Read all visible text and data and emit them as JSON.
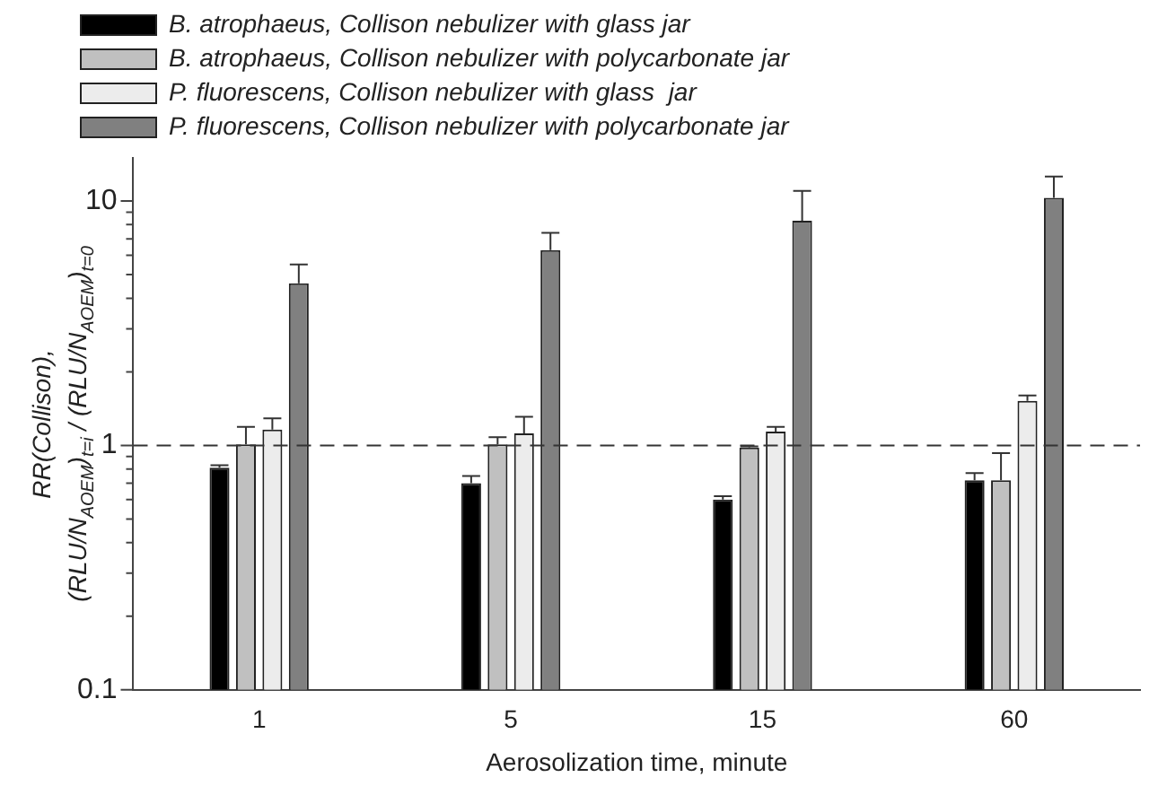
{
  "chart_data": {
    "type": "bar",
    "xlabel": "Aerosolization time, minute",
    "ylabel": "RR(Collison),\n(RLU/N$_{AOEM}$)$_{t=i}$ / (RLU/N$_{AOEM}$)$_{t=0}$",
    "categories": [
      "1",
      "5",
      "15",
      "60"
    ],
    "series": [
      {
        "name": "B. atrophaeus, Collison nebulizer with glass jar",
        "color": "#000000",
        "values": [
          0.81,
          0.7,
          0.6,
          0.72
        ],
        "errors": [
          0.02,
          0.05,
          0.02,
          0.05
        ]
      },
      {
        "name": "B. atrophaeus, Collison nebulizer with polycarbonate jar",
        "color": "#c0c0c0",
        "values": [
          1.01,
          1.01,
          0.98,
          0.72
        ],
        "errors": [
          0.18,
          0.07,
          0.01,
          0.21
        ]
      },
      {
        "name": "P. fluorescens, Collison nebulizer with glass  jar",
        "color": "#ececec",
        "values": [
          1.16,
          1.12,
          1.14,
          1.52
        ],
        "errors": [
          0.13,
          0.19,
          0.05,
          0.08
        ]
      },
      {
        "name": "P. fluorescens, Collison nebulizer with polycarbonate jar",
        "color": "#808080",
        "values": [
          4.6,
          6.3,
          8.3,
          10.3
        ],
        "errors": [
          0.9,
          1.1,
          2.7,
          2.3
        ]
      }
    ],
    "log": true,
    "ylim": [
      0.1,
      15
    ],
    "yticks": [
      0.1,
      {
        "value": 0.2,
        "label": null
      },
      {
        "value": 0.3,
        "label": null
      },
      {
        "value": 0.4,
        "label": null
      },
      {
        "value": 0.5,
        "label": null
      },
      {
        "value": 0.6,
        "label": null
      },
      {
        "value": 0.7,
        "label": null
      },
      {
        "value": 0.8,
        "label": null
      },
      {
        "value": 0.9,
        "label": null
      },
      1,
      {
        "value": 2,
        "label": null
      },
      {
        "value": 3,
        "label": null
      },
      {
        "value": 4,
        "label": null
      },
      {
        "value": 5,
        "label": null
      },
      {
        "value": 6,
        "label": null
      },
      {
        "value": 7,
        "label": null
      },
      {
        "value": 8,
        "label": null
      },
      {
        "value": 9,
        "label": null
      },
      10
    ],
    "ref_lines": [
      {
        "axis": "y",
        "value": 1,
        "line_style": "dashed",
        "color": "#333333"
      }
    ],
    "grid": false,
    "legend": "top"
  }
}
